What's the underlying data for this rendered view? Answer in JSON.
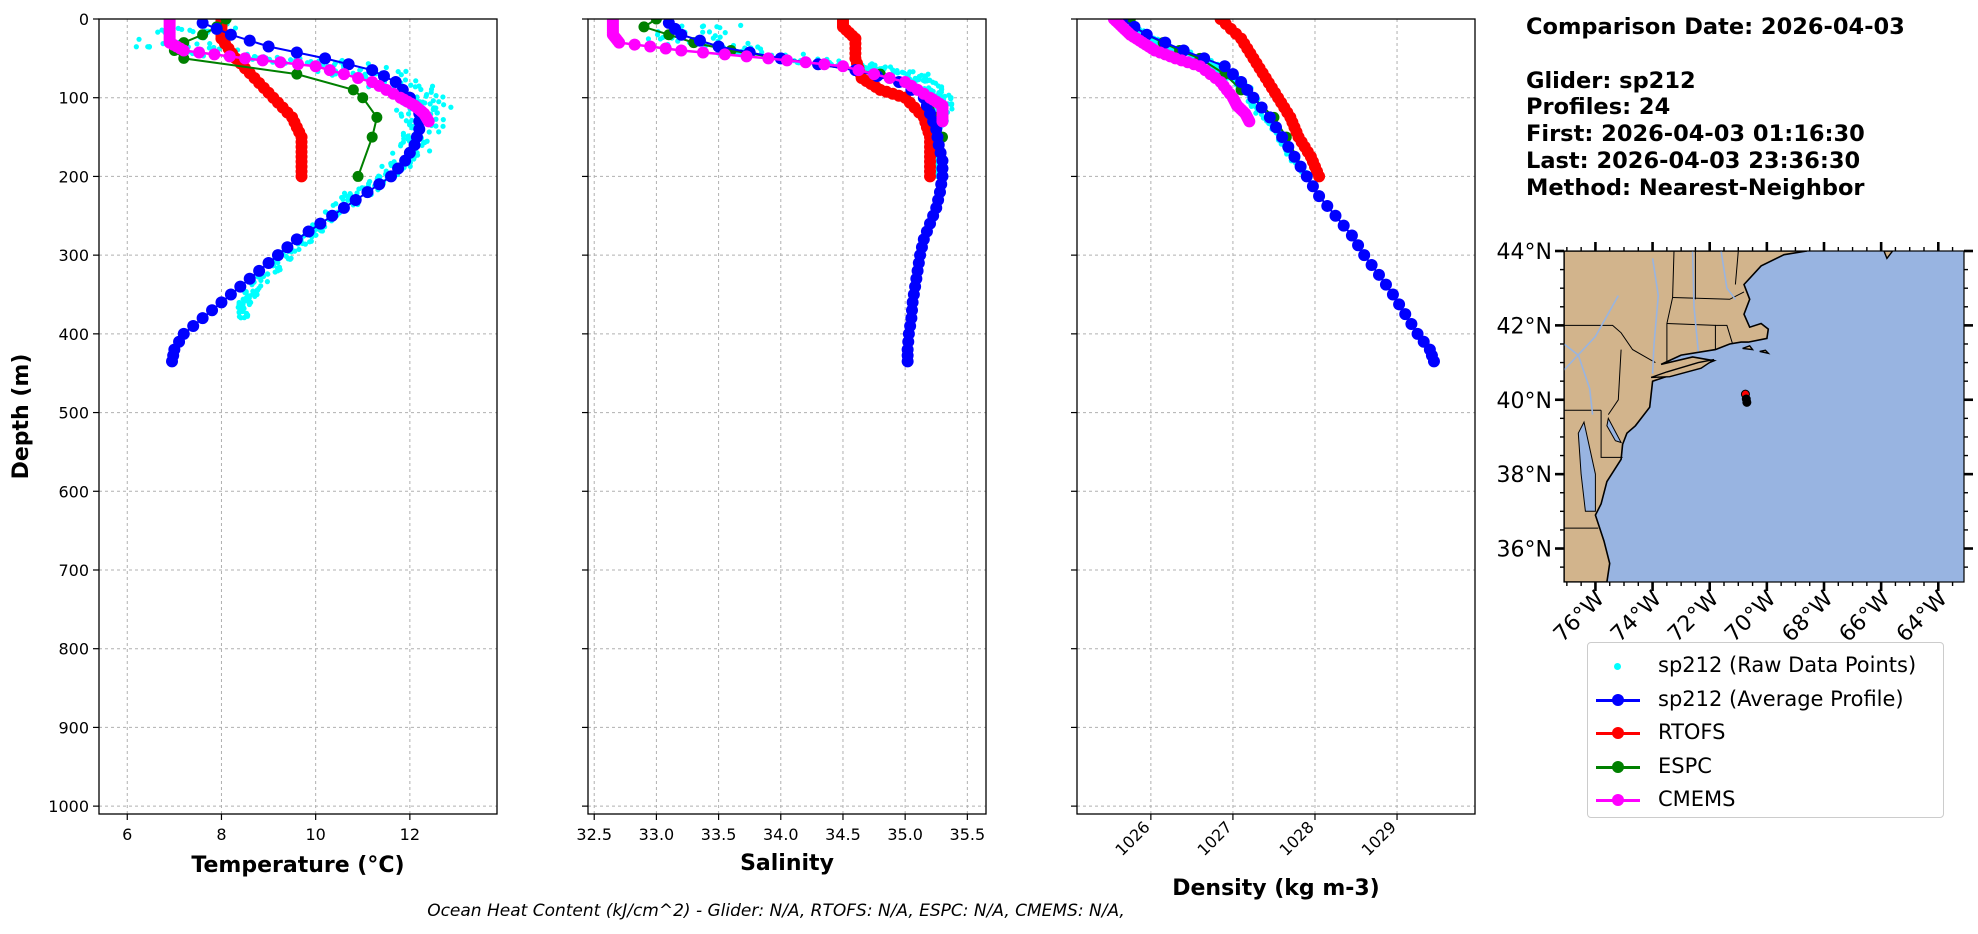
{
  "info": {
    "date_line": "Comparison Date: 2026-04-03",
    "glider_line": "Glider: sp212",
    "profiles_line": "Profiles: 24",
    "first_line": "First: 2026-04-03 01:16:30",
    "last_line": "Last: 2026-04-03 23:36:30",
    "method_line": "Method: Nearest-Neighbor"
  },
  "footer": "Ocean Heat Content (kJ/cm^2) - Glider: N/A,  RTOFS: N/A,  ESPC: N/A,  CMEMS: N/A,",
  "colors": {
    "raw": "#00ffff",
    "avg": "#0000ff",
    "rtofs": "#ff0000",
    "espc": "#008000",
    "cmems": "#ff00ff",
    "land": "#d2b48c",
    "ocean": "#98b4e1"
  },
  "legend": [
    {
      "label": "sp212 (Raw Data Points)",
      "color": "#00ffff",
      "style": "dot"
    },
    {
      "label": "sp212 (Average Profile)",
      "color": "#0000ff",
      "style": "line"
    },
    {
      "label": "RTOFS",
      "color": "#ff0000",
      "style": "line"
    },
    {
      "label": "ESPC",
      "color": "#008000",
      "style": "line"
    },
    {
      "label": "CMEMS",
      "color": "#ff00ff",
      "style": "line"
    }
  ],
  "chart_data": [
    {
      "type": "line",
      "xlabel": "Temperature (°C)",
      "ylabel": "Depth (m)",
      "xlim": [
        5.4,
        13.85
      ],
      "ylim": [
        1010,
        0
      ],
      "xticks": [
        6,
        8,
        10,
        12
      ],
      "yticks": [
        0,
        100,
        200,
        300,
        400,
        500,
        600,
        700,
        800,
        900,
        1000
      ],
      "grid": true,
      "raw": {
        "depth": [
          5,
          35,
          50,
          60,
          80,
          100,
          120,
          150,
          180,
          210,
          240,
          270,
          300,
          330,
          360,
          380
        ],
        "center": [
          7.5,
          7.0,
          8.8,
          10.8,
          11.8,
          12.2,
          12.3,
          12.2,
          11.9,
          11.2,
          10.5,
          9.9,
          9.4,
          8.9,
          8.5,
          8.4
        ],
        "spread": [
          1.2,
          1.5,
          1.6,
          1.6,
          1.1,
          0.9,
          0.7,
          0.6,
          0.5,
          0.4,
          0.4,
          0.3,
          0.3,
          0.3,
          0.2,
          0.2
        ]
      },
      "series": [
        {
          "name": "sp212 (Average Profile)",
          "depth": [
            5,
            20,
            35,
            50,
            65,
            80,
            100,
            120,
            140,
            160,
            180,
            200,
            220,
            240,
            260,
            280,
            300,
            320,
            340,
            360,
            380,
            400,
            420,
            435
          ],
          "values": [
            7.6,
            8.2,
            9.0,
            10.2,
            11.2,
            11.7,
            12.0,
            12.2,
            12.2,
            12.1,
            11.9,
            11.6,
            11.1,
            10.6,
            10.1,
            9.6,
            9.2,
            8.8,
            8.4,
            8.0,
            7.6,
            7.2,
            7.0,
            6.95
          ]
        },
        {
          "name": "RTOFS",
          "depth": [
            0,
            10,
            25,
            50,
            75,
            100,
            125,
            150,
            175,
            200
          ],
          "values": [
            8.0,
            8.0,
            8.0,
            8.3,
            8.7,
            9.1,
            9.5,
            9.7,
            9.7,
            9.7
          ]
        },
        {
          "name": "ESPC",
          "depth": [
            0,
            10,
            20,
            30,
            40,
            50,
            70,
            90,
            100,
            125,
            150,
            200
          ],
          "values": [
            8.1,
            7.9,
            7.6,
            7.2,
            7.0,
            7.2,
            9.6,
            10.8,
            11.0,
            11.3,
            11.2,
            10.9
          ]
        },
        {
          "name": "CMEMS",
          "depth": [
            0,
            10,
            20,
            30,
            40,
            50,
            60,
            80,
            100,
            110,
            120,
            130
          ],
          "values": [
            6.9,
            6.9,
            6.9,
            6.9,
            7.2,
            8.5,
            10.0,
            11.2,
            11.8,
            12.1,
            12.3,
            12.4
          ]
        }
      ]
    },
    {
      "type": "line",
      "xlabel": "Salinity",
      "xlim": [
        32.45,
        35.65
      ],
      "ylim": [
        1010,
        0
      ],
      "xticks": [
        32.5,
        33.0,
        33.5,
        34.0,
        34.5,
        35.0,
        35.5
      ],
      "grid": true,
      "raw": {
        "depth": [
          5,
          30,
          50,
          60,
          70,
          80,
          100,
          120,
          150,
          180,
          200
        ],
        "center": [
          33.4,
          33.3,
          34.0,
          34.7,
          35.0,
          35.15,
          35.3,
          35.3,
          35.25,
          35.25,
          35.25
        ],
        "spread": [
          0.55,
          0.65,
          0.6,
          0.4,
          0.3,
          0.15,
          0.12,
          0.1,
          0.08,
          0.06,
          0.05
        ]
      },
      "series": [
        {
          "name": "sp212 (Average Profile)",
          "depth": [
            5,
            20,
            35,
            50,
            65,
            80,
            100,
            120,
            140,
            160,
            180,
            200,
            220,
            240,
            260,
            280,
            300,
            320,
            340,
            360,
            380,
            400,
            420,
            435
          ],
          "values": [
            33.1,
            33.2,
            33.5,
            34.0,
            34.6,
            34.95,
            35.15,
            35.2,
            35.25,
            35.27,
            35.3,
            35.3,
            35.28,
            35.25,
            35.2,
            35.15,
            35.12,
            35.1,
            35.08,
            35.06,
            35.05,
            35.03,
            35.02,
            35.02
          ]
        },
        {
          "name": "RTOFS",
          "depth": [
            0,
            10,
            25,
            50,
            75,
            90,
            100,
            125,
            150,
            175,
            200
          ],
          "values": [
            34.5,
            34.5,
            34.6,
            34.6,
            34.65,
            34.8,
            35.0,
            35.15,
            35.2,
            35.2,
            35.2
          ]
        },
        {
          "name": "ESPC",
          "depth": [
            0,
            10,
            20,
            30,
            40,
            50,
            70,
            90,
            100,
            125,
            150,
            200
          ],
          "values": [
            33.0,
            32.9,
            33.1,
            33.3,
            33.6,
            34.0,
            34.8,
            35.1,
            35.2,
            35.25,
            35.3,
            35.3
          ]
        },
        {
          "name": "CMEMS",
          "depth": [
            0,
            10,
            20,
            30,
            40,
            50,
            60,
            80,
            100,
            110,
            120,
            130
          ],
          "values": [
            32.65,
            32.65,
            32.65,
            32.7,
            33.2,
            33.9,
            34.5,
            35.0,
            35.2,
            35.3,
            35.3,
            35.3
          ]
        }
      ]
    },
    {
      "type": "line",
      "xlabel": "Density (kg m-3)",
      "xlim": [
        1025.1,
        1029.95
      ],
      "ylim": [
        1010,
        0
      ],
      "xticks": [
        1026,
        1027,
        1028,
        1029
      ],
      "grid": true,
      "raw": {
        "depth": [
          0,
          20,
          40,
          60,
          80,
          100,
          150,
          200
        ],
        "center": [
          1025.65,
          1025.9,
          1026.3,
          1026.8,
          1027.05,
          1027.2,
          1027.55,
          1027.9
        ],
        "spread": [
          0.1,
          0.15,
          0.2,
          0.2,
          0.15,
          0.12,
          0.08,
          0.06
        ]
      },
      "series": [
        {
          "name": "sp212 (Average Profile)",
          "depth": [
            0,
            20,
            40,
            60,
            80,
            100,
            125,
            150,
            175,
            200,
            225,
            250,
            275,
            300,
            325,
            350,
            375,
            400,
            420,
            435
          ],
          "values": [
            1025.65,
            1025.95,
            1026.4,
            1026.9,
            1027.1,
            1027.25,
            1027.45,
            1027.6,
            1027.75,
            1027.9,
            1028.05,
            1028.25,
            1028.45,
            1028.6,
            1028.78,
            1028.95,
            1029.1,
            1029.25,
            1029.4,
            1029.45
          ]
        },
        {
          "name": "RTOFS",
          "depth": [
            0,
            25,
            50,
            75,
            100,
            125,
            150,
            175,
            200
          ],
          "values": [
            1026.85,
            1027.1,
            1027.25,
            1027.4,
            1027.55,
            1027.7,
            1027.8,
            1027.95,
            1028.05
          ]
        },
        {
          "name": "ESPC",
          "depth": [
            0,
            10,
            20,
            30,
            40,
            50,
            70,
            90,
            100,
            125,
            150,
            200
          ],
          "values": [
            1025.75,
            1025.8,
            1025.95,
            1026.15,
            1026.35,
            1026.6,
            1026.9,
            1027.1,
            1027.25,
            1027.5,
            1027.65,
            1027.9
          ]
        },
        {
          "name": "CMEMS",
          "depth": [
            0,
            10,
            20,
            30,
            40,
            50,
            60,
            80,
            100,
            110,
            120,
            130
          ],
          "values": [
            1025.55,
            1025.65,
            1025.75,
            1025.9,
            1026.05,
            1026.3,
            1026.6,
            1026.85,
            1027.0,
            1027.05,
            1027.15,
            1027.2
          ]
        }
      ]
    }
  ],
  "map": {
    "lon_range": [
      -77.1,
      -63.1
    ],
    "lat_range": [
      35.1,
      44.0
    ],
    "lat_ticks": [
      36,
      38,
      40,
      42,
      44
    ],
    "lon_ticks": [
      -76,
      -74,
      -72,
      -70,
      -68,
      -66,
      -64
    ],
    "lat_labels": [
      "36°N",
      "38°N",
      "40°N",
      "42°N",
      "44°N"
    ],
    "lon_labels": [
      "76°W",
      "74°W",
      "72°W",
      "70°W",
      "68°W",
      "66°W",
      "64°W"
    ],
    "glider_track": [
      [
        -70.75,
        40.15
      ],
      [
        -70.72,
        40.02
      ],
      [
        -70.7,
        39.93
      ]
    ]
  }
}
